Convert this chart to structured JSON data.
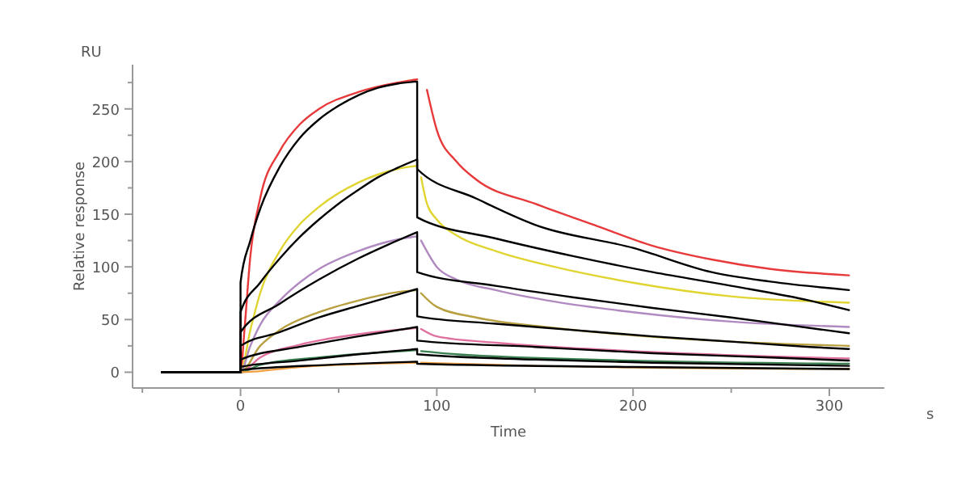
{
  "chart_data": {
    "type": "line",
    "xlabel": "Time",
    "ylabel": "Relative response",
    "annotations": [
      "RU",
      "s"
    ],
    "xlim": [
      -55,
      328
    ],
    "ylim": [
      -15,
      292
    ],
    "xticks": [
      {
        "value": -50,
        "label": null
      },
      0,
      {
        "value": 50,
        "label": null
      },
      100,
      {
        "value": 150,
        "label": null
      },
      200,
      {
        "value": 250,
        "label": null
      },
      300
    ],
    "yticks": [
      0,
      {
        "value": 25,
        "label": null
      },
      50,
      {
        "value": 75,
        "label": null
      },
      100,
      {
        "value": 125,
        "label": null
      },
      150,
      {
        "value": 175,
        "label": null
      },
      200,
      {
        "value": 225,
        "label": null
      },
      250,
      {
        "value": 275,
        "label": null
      }
    ],
    "grid": false,
    "marker": "none",
    "line_style": "solid",
    "series": [
      {
        "color": "#e8393a",
        "x": [
          -40,
          0,
          2,
          5,
          10,
          20,
          30,
          40,
          60,
          80,
          90,
          92,
          95,
          100,
          110,
          120,
          150,
          180,
          210,
          240,
          270,
          310
        ],
        "values": [
          0,
          0,
          40,
          110,
          165,
          210,
          235,
          250,
          266,
          275,
          278,
          null,
          268,
          230,
          200,
          183,
          160,
          140,
          120,
          107,
          98,
          92
        ]
      },
      {
        "color": "#e0d431",
        "x": [
          -40,
          0,
          5,
          10,
          20,
          30,
          40,
          60,
          80,
          90,
          91,
          92,
          95,
          100,
          110,
          130,
          160,
          200,
          250,
          310
        ],
        "values": [
          0,
          0,
          40,
          75,
          115,
          140,
          157,
          180,
          193,
          196,
          null,
          185,
          160,
          145,
          130,
          115,
          100,
          85,
          72,
          66
        ]
      },
      {
        "color": "#b08ac0",
        "x": [
          -40,
          0,
          5,
          10,
          20,
          30,
          40,
          60,
          80,
          90,
          91,
          92,
          100,
          110,
          130,
          160,
          200,
          250,
          310
        ],
        "values": [
          0,
          0,
          25,
          45,
          68,
          85,
          98,
          115,
          126,
          129,
          null,
          125,
          100,
          88,
          78,
          67,
          57,
          48,
          43
        ]
      },
      {
        "color": "#b8a040",
        "x": [
          -40,
          0,
          10,
          20,
          40,
          60,
          80,
          90,
          91,
          92,
          100,
          120,
          160,
          200,
          250,
          310
        ],
        "values": [
          0,
          0,
          25,
          40,
          57,
          68,
          76,
          78,
          null,
          75,
          62,
          52,
          42,
          35,
          29,
          25
        ]
      },
      {
        "color": "#e070a0",
        "x": [
          -40,
          0,
          10,
          30,
          60,
          90,
          91,
          92,
          100,
          130,
          200,
          310
        ],
        "values": [
          0,
          0,
          14,
          26,
          36,
          42,
          null,
          41,
          34,
          28,
          20,
          13
        ]
      },
      {
        "color": "#3a8050",
        "x": [
          -40,
          0,
          10,
          40,
          90,
          91,
          92,
          110,
          200,
          310
        ],
        "values": [
          0,
          0,
          7,
          14,
          21,
          null,
          20,
          17,
          11,
          8
        ]
      },
      {
        "color": "#f0a040",
        "x": [
          -40,
          0,
          30,
          90,
          91,
          92,
          150,
          310
        ],
        "values": [
          0,
          0,
          5,
          9,
          null,
          9,
          6,
          3
        ]
      },
      {
        "color": "#000000",
        "x": [
          -40,
          0,
          0,
          5,
          10,
          20,
          30,
          40,
          50,
          60,
          70,
          80,
          90,
          90,
          120,
          150,
          200,
          240,
          270,
          310
        ],
        "values": [
          0,
          0,
          85,
          125,
          155,
          195,
          222,
          240,
          253,
          263,
          270,
          274,
          276,
          193,
          165,
          140,
          118,
          95,
          86,
          78
        ]
      },
      {
        "color": "#000000",
        "x": [
          -40,
          0,
          0,
          10,
          20,
          30,
          40,
          50,
          60,
          70,
          80,
          90,
          90,
          130,
          170,
          210,
          250,
          290,
          310
        ],
        "values": [
          0,
          0,
          57,
          85,
          108,
          128,
          145,
          160,
          173,
          185,
          194,
          202,
          147,
          127,
          110,
          95,
          82,
          68,
          59
        ]
      },
      {
        "color": "#000000",
        "x": [
          -40,
          0,
          0,
          20,
          40,
          60,
          75,
          90,
          90,
          130,
          170,
          210,
          250,
          290,
          310
        ],
        "values": [
          0,
          0,
          38,
          65,
          88,
          108,
          121,
          133,
          95,
          82,
          71,
          61,
          52,
          42,
          37
        ]
      },
      {
        "color": "#000000",
        "x": [
          -40,
          0,
          0,
          20,
          40,
          60,
          90,
          90,
          130,
          170,
          210,
          250,
          290,
          310
        ],
        "values": [
          0,
          0,
          25,
          38,
          52,
          63,
          79,
          53,
          46,
          40,
          34,
          29,
          24,
          22
        ]
      },
      {
        "color": "#000000",
        "x": [
          -40,
          0,
          0,
          30,
          60,
          90,
          90,
          150,
          210,
          270,
          310
        ],
        "values": [
          0,
          0,
          12,
          24,
          34,
          43,
          30,
          24,
          18,
          14,
          11
        ]
      },
      {
        "color": "#000000",
        "x": [
          -40,
          0,
          0,
          30,
          60,
          90,
          90,
          150,
          210,
          310
        ],
        "values": [
          0,
          0,
          5,
          11,
          17,
          22,
          17,
          12,
          9,
          6
        ]
      },
      {
        "color": "#000000",
        "x": [
          -40,
          0,
          0,
          45,
          90,
          90,
          200,
          310
        ],
        "values": [
          0,
          0,
          2,
          7,
          10,
          8,
          5,
          3
        ]
      }
    ]
  }
}
